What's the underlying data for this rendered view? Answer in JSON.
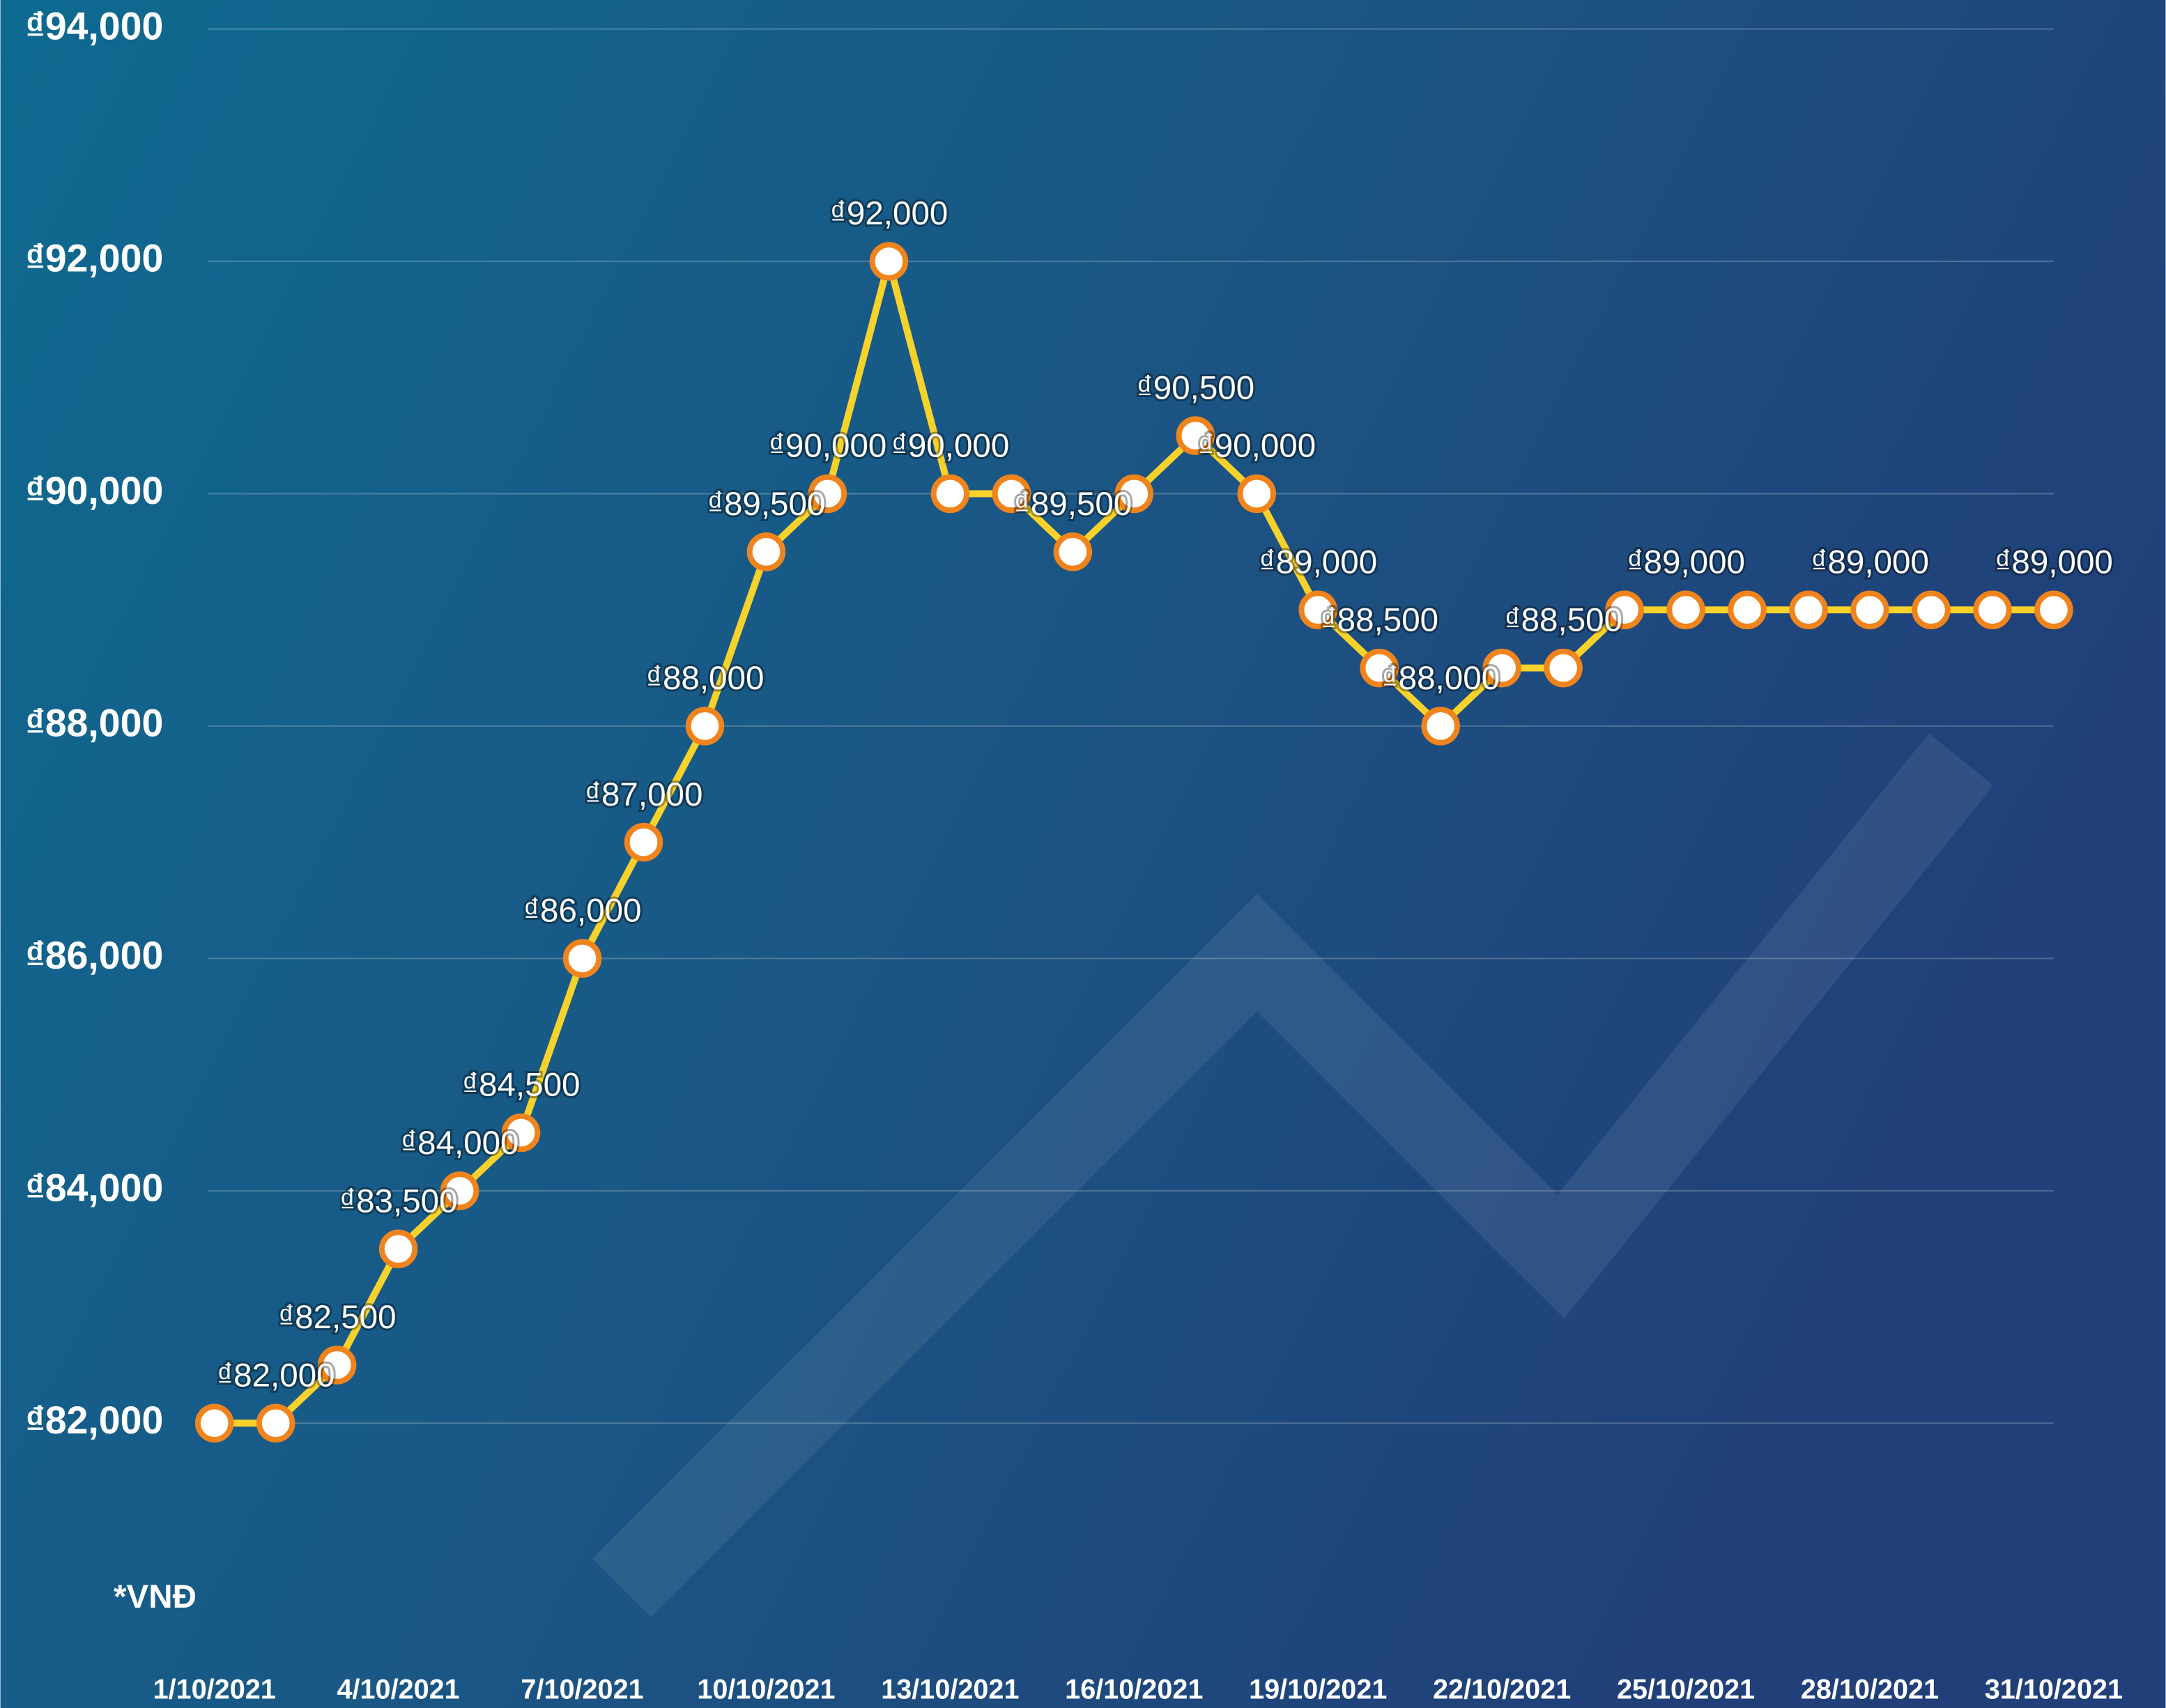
{
  "chart_data": {
    "type": "line",
    "annotation": "*VNĐ",
    "categories": [
      "1/10/2021",
      null,
      null,
      "4/10/2021",
      null,
      null,
      "7/10/2021",
      null,
      null,
      "10/10/2021",
      null,
      null,
      "13/10/2021",
      null,
      null,
      "16/10/2021",
      null,
      null,
      "19/10/2021",
      null,
      null,
      "22/10/2021",
      null,
      null,
      "25/10/2021",
      null,
      null,
      "28/10/2021",
      null,
      null,
      "31/10/2021"
    ],
    "values": [
      82000,
      82000,
      82500,
      83500,
      84000,
      84500,
      86000,
      87000,
      88000,
      89500,
      90000,
      92000,
      90000,
      90000,
      89500,
      90000,
      90500,
      90000,
      89000,
      88500,
      88000,
      88500,
      88500,
      89000,
      89000,
      89000,
      89000,
      89000,
      89000,
      89000,
      89000
    ],
    "value_labels": [
      null,
      "₫82,000",
      "₫82,500",
      "₫83,500",
      "₫84,000",
      "₫84,500",
      "₫86,000",
      "₫87,000",
      "₫88,000",
      "₫89,500",
      "₫90,000",
      "₫92,000",
      "₫90,000",
      null,
      "₫89,500",
      null,
      "₫90,500",
      "₫90,000",
      "₫89,000",
      "₫88,500",
      "₫88,000",
      null,
      "₫88,500",
      null,
      "₫89,000",
      null,
      null,
      "₫89,000",
      null,
      null,
      "₫89,000"
    ],
    "color": "#f7d22a",
    "marker_color": "#f0841c",
    "ylim": [
      80000,
      94000
    ],
    "yticks": [
      {
        "value": 82000,
        "label": "₫82,000"
      },
      {
        "value": 84000,
        "label": "₫84,000"
      },
      {
        "value": 86000,
        "label": "₫86,000"
      },
      {
        "value": 88000,
        "label": "₫88,000"
      },
      {
        "value": 90000,
        "label": "₫90,000"
      },
      {
        "value": 92000,
        "label": "₫92,000"
      },
      {
        "value": 94000,
        "label": "₫94,000"
      }
    ],
    "grid": true
  }
}
